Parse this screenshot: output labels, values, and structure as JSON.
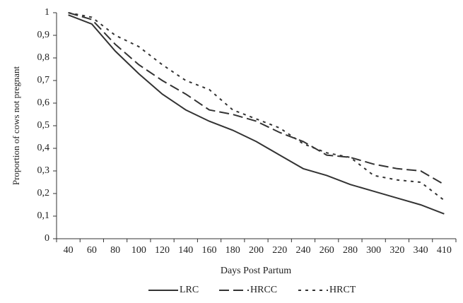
{
  "chart_data": {
    "type": "line",
    "xlabel": "Days Post Partum",
    "ylabel": "Proportion of cows not pregnant",
    "categories": [
      "40",
      "60",
      "80",
      "100",
      "120",
      "140",
      "160",
      "180",
      "200",
      "220",
      "240",
      "260",
      "280",
      "300",
      "320",
      "340",
      "410"
    ],
    "series": [
      {
        "name": "LRC",
        "color": "#333333",
        "dash": "none",
        "values": [
          0.99,
          0.95,
          0.83,
          0.73,
          0.64,
          0.57,
          0.52,
          0.48,
          0.43,
          0.37,
          0.31,
          0.28,
          0.24,
          0.21,
          0.18,
          0.15,
          0.11
        ]
      },
      {
        "name": "HRCC",
        "color": "#333333",
        "dash": "14,6",
        "values": [
          1.0,
          0.97,
          0.86,
          0.77,
          0.7,
          0.64,
          0.57,
          0.55,
          0.52,
          0.47,
          0.43,
          0.37,
          0.36,
          0.33,
          0.31,
          0.3,
          0.24
        ]
      },
      {
        "name": "HRCT",
        "color": "#333333",
        "dash": "4,6",
        "values": [
          1.0,
          0.98,
          0.9,
          0.85,
          0.77,
          0.7,
          0.66,
          0.57,
          0.53,
          0.49,
          0.42,
          0.38,
          0.36,
          0.28,
          0.26,
          0.25,
          0.17
        ]
      }
    ],
    "ylim": [
      0,
      1
    ],
    "yticks": [
      0,
      {
        "value": 0.1,
        "label": "0,1"
      },
      {
        "value": 0.2,
        "label": "0,2"
      },
      {
        "value": 0.3,
        "label": "0,3"
      },
      {
        "value": 0.4,
        "label": "0,4"
      },
      {
        "value": 0.5,
        "label": "0,5"
      },
      {
        "value": 0.6,
        "label": "0,6"
      },
      {
        "value": 0.7,
        "label": "0,7"
      },
      {
        "value": 0.8,
        "label": "0,8"
      },
      {
        "value": 0.9,
        "label": "0,9"
      },
      1
    ],
    "grid": false,
    "legend": "bottom"
  }
}
